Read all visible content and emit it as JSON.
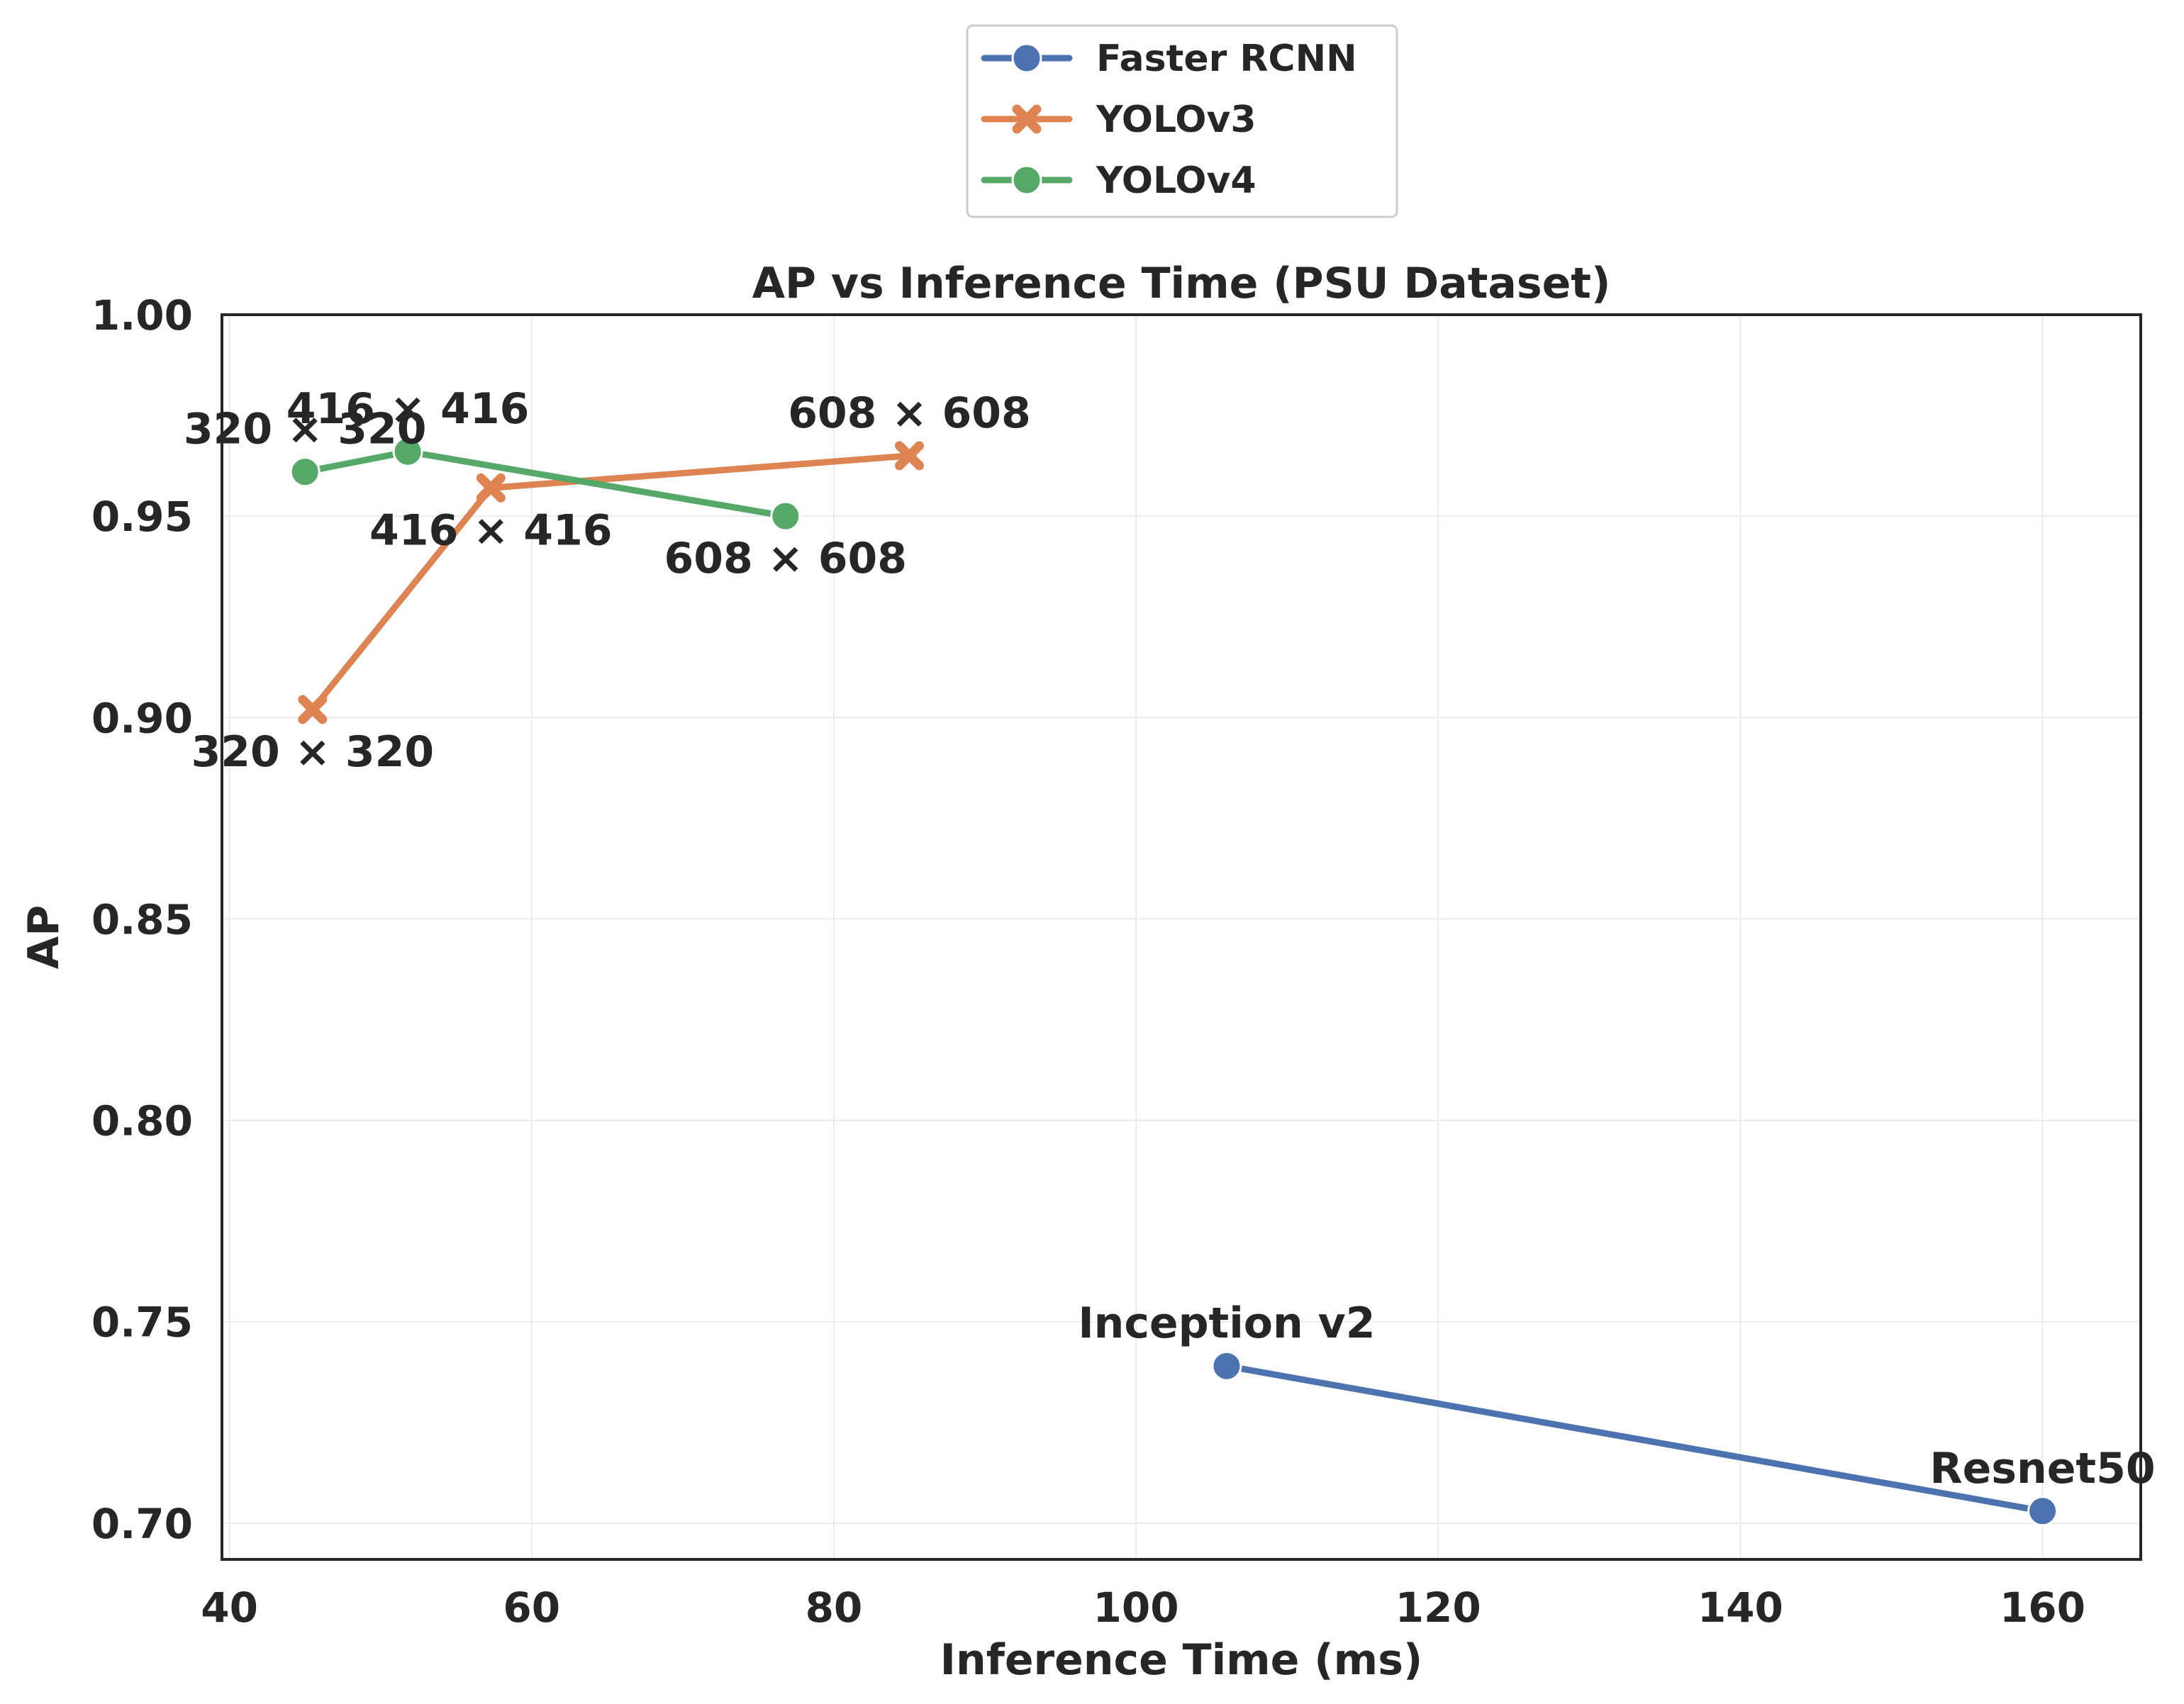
{
  "chart_data": {
    "type": "line",
    "title": "AP vs Inference Time (PSU Dataset)",
    "xlabel": "Inference Time (ms)",
    "ylabel": "AP",
    "xlim": [
      39.5,
      166.5
    ],
    "ylim": [
      0.691,
      1.0
    ],
    "xticks": [
      40,
      60,
      80,
      100,
      120,
      140,
      160
    ],
    "xtick_labels": [
      "40",
      "60",
      "80",
      "100",
      "120",
      "140",
      "160"
    ],
    "yticks": [
      0.7,
      0.75,
      0.8,
      0.85,
      0.9,
      0.95,
      1.0
    ],
    "ytick_labels": [
      "0.70",
      "0.75",
      "0.80",
      "0.85",
      "0.90",
      "0.95",
      "1.00"
    ],
    "grid": true,
    "legend_position": "top-center-outside",
    "series": [
      {
        "name": "Faster RCNN",
        "color": "#4c72b0",
        "marker": "circle",
        "x": [
          106,
          160
        ],
        "y": [
          0.739,
          0.703
        ],
        "labels": [
          "Inception v2",
          "Resnet50"
        ],
        "label_placement": [
          "above",
          "above"
        ]
      },
      {
        "name": "YOLOv3",
        "color": "#dd8452",
        "marker": "x",
        "x": [
          45.5,
          57.3,
          85
        ],
        "y": [
          0.902,
          0.957,
          0.965
        ],
        "labels": [
          "320 × 320",
          "416 × 416",
          "608 × 608"
        ],
        "label_placement": [
          "below",
          "below",
          "above"
        ]
      },
      {
        "name": "YOLOv4",
        "color": "#55a868",
        "marker": "circle",
        "x": [
          45,
          51.8,
          76.8
        ],
        "y": [
          0.961,
          0.966,
          0.95
        ],
        "labels": [
          "320 × 320",
          "416 × 416",
          "608 × 608"
        ],
        "label_placement": [
          "above",
          "above",
          "below"
        ]
      }
    ]
  }
}
